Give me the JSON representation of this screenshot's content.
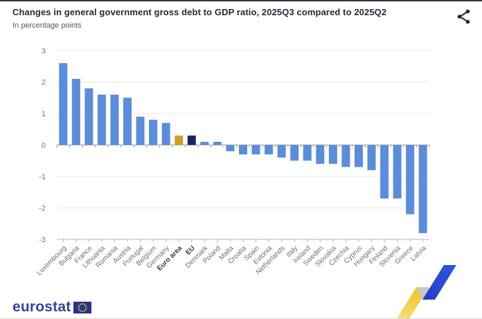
{
  "header": {
    "title": "Changes in general government gross debt to GDP ratio, 2025Q3 compared to 2025Q2",
    "subtitle": "In percentage points"
  },
  "icons": {
    "share": "share-icon",
    "eu_flag": "eu-flag-icon",
    "ribbon": "eurostat-ribbon-decoration"
  },
  "chart_data": {
    "type": "bar",
    "title": "Changes in general government gross debt to GDP ratio, 2025Q3 compared to 2025Q2",
    "xlabel": "",
    "ylabel": "percentage points",
    "ylim": [
      -3,
      3
    ],
    "yticks": [
      3,
      2,
      1,
      0,
      -1,
      -2,
      -3
    ],
    "grid": true,
    "legend": "none",
    "categories": [
      "Luxembourg",
      "Bulgaria",
      "France",
      "Lithuania",
      "Romania",
      "Austria",
      "Portugal",
      "Belgium",
      "Germany",
      "Euro area",
      "EU",
      "Denmark",
      "Poland",
      "Malta",
      "Croatia",
      "Spain",
      "Estonia",
      "Netherlands",
      "Italy",
      "Ireland",
      "Sweden",
      "Slovakia",
      "Czechia",
      "Cyprus",
      "Hungary",
      "Finland",
      "Slovenia",
      "Greece",
      "Latvia"
    ],
    "values": [
      2.6,
      2.1,
      1.8,
      1.6,
      1.6,
      1.5,
      0.9,
      0.8,
      0.7,
      0.3,
      0.3,
      0.1,
      0.1,
      -0.2,
      -0.3,
      -0.3,
      -0.3,
      -0.4,
      -0.5,
      -0.5,
      -0.6,
      -0.6,
      -0.7,
      -0.7,
      -0.8,
      -1.7,
      -1.7,
      -2.2,
      -2.8
    ],
    "bold_categories": [
      "Euro area",
      "EU"
    ],
    "colors": {
      "default_bar": "#5b8dd9",
      "euro_area_bar": "#c9a227",
      "eu_bar": "#1a2368",
      "gridline": "#e9e9e9",
      "zero_line": "#9e9e9e",
      "bottom_line": "#b5b5b5"
    }
  },
  "footer": {
    "logo_text": "eurostat"
  }
}
